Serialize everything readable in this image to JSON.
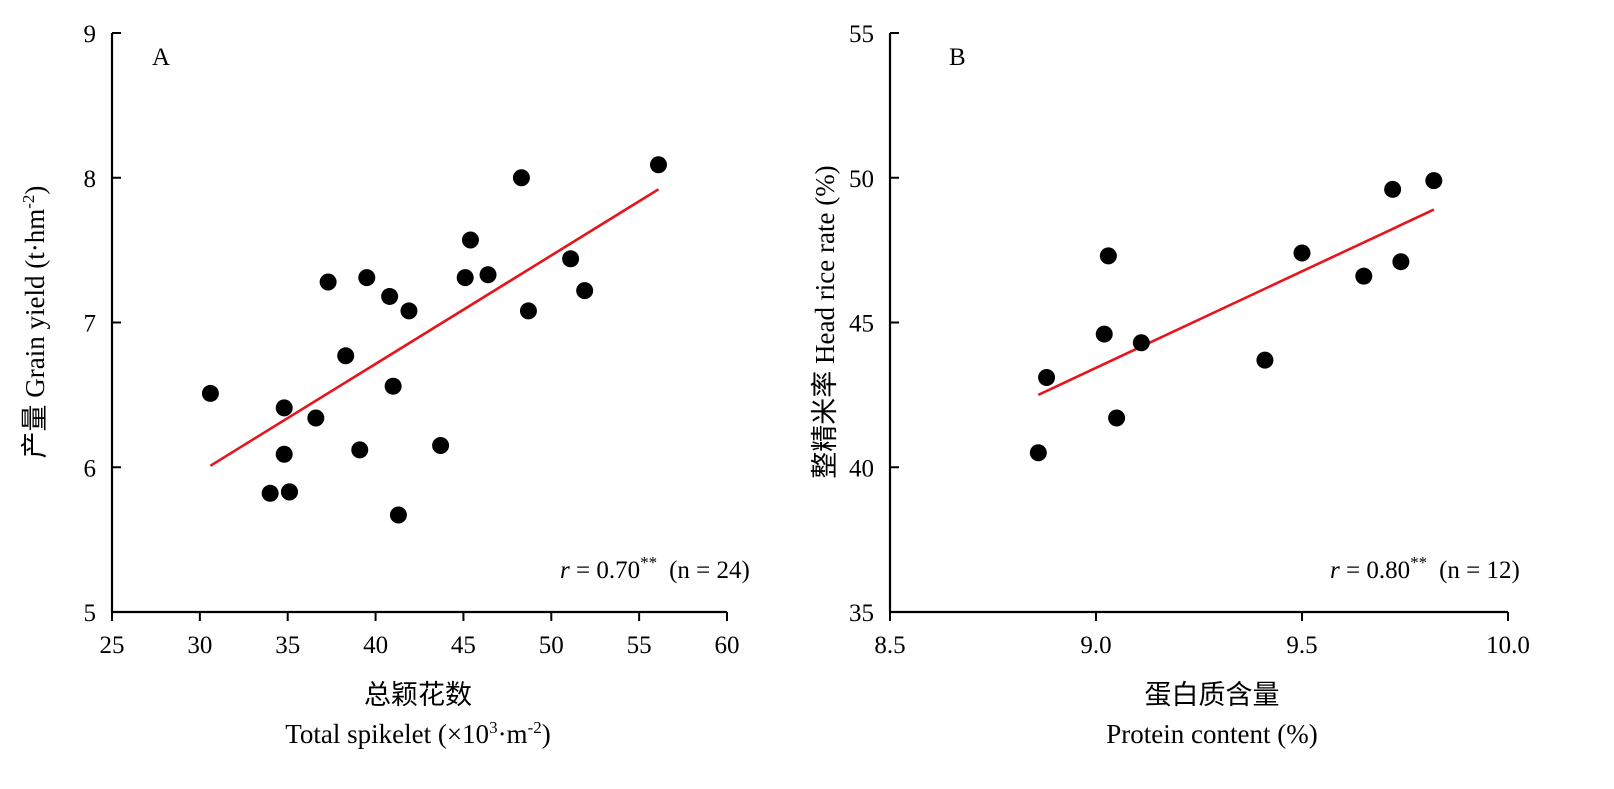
{
  "chart_data": [
    {
      "type": "scatter",
      "panel_label": "A",
      "ylabel_cn": "产量",
      "ylabel_en": "Grain yield (t·hm",
      "ylabel_sup": "-2",
      "ylabel_end": ")",
      "xlabel_cn": "总颖花数",
      "xlabel_en": "Total spikelet (×10",
      "xlabel_sup1": "3",
      "xlabel_mid": "·m",
      "xlabel_sup2": "-2",
      "xlabel_end": ")",
      "xlim": [
        25,
        60
      ],
      "ylim": [
        5,
        9
      ],
      "xticks": [
        "25",
        "30",
        "35",
        "40",
        "45",
        "50",
        "55",
        "60"
      ],
      "yticks": [
        "5",
        "6",
        "7",
        "8",
        "9"
      ],
      "points": [
        {
          "x": 30.6,
          "y": 6.51
        },
        {
          "x": 34.0,
          "y": 5.82
        },
        {
          "x": 34.8,
          "y": 6.41
        },
        {
          "x": 34.8,
          "y": 6.09
        },
        {
          "x": 35.1,
          "y": 5.83
        },
        {
          "x": 36.6,
          "y": 6.34
        },
        {
          "x": 37.3,
          "y": 7.28
        },
        {
          "x": 38.3,
          "y": 6.77
        },
        {
          "x": 39.1,
          "y": 6.12
        },
        {
          "x": 39.5,
          "y": 7.31
        },
        {
          "x": 40.8,
          "y": 7.18
        },
        {
          "x": 41.0,
          "y": 6.56
        },
        {
          "x": 41.3,
          "y": 5.67
        },
        {
          "x": 41.9,
          "y": 7.08
        },
        {
          "x": 43.7,
          "y": 6.15
        },
        {
          "x": 45.1,
          "y": 7.31
        },
        {
          "x": 45.4,
          "y": 7.57
        },
        {
          "x": 46.4,
          "y": 7.33
        },
        {
          "x": 48.3,
          "y": 8.0
        },
        {
          "x": 48.7,
          "y": 7.08
        },
        {
          "x": 51.1,
          "y": 7.44
        },
        {
          "x": 51.9,
          "y": 7.22
        },
        {
          "x": 56.1,
          "y": 8.09
        },
        {
          "x": 35.1,
          "y": 5.83
        }
      ],
      "fit_line": {
        "x": [
          30.6,
          56.1
        ],
        "y": [
          6.01,
          7.92
        ]
      },
      "r_label": "r",
      "r_value": " = 0.70",
      "r_sig": "**",
      "n_label": "(n = 24)"
    },
    {
      "type": "scatter",
      "panel_label": "B",
      "ylabel_cn": "整精米率",
      "ylabel_en": "Head rice rate (%)",
      "xlabel_cn": "蛋白质含量",
      "xlabel_en": "Protein content (%)",
      "xlim": [
        8.5,
        10.0
      ],
      "ylim": [
        35,
        55
      ],
      "xticks": [
        "8.5",
        "9.0",
        "9.5",
        "10.0"
      ],
      "yticks": [
        "35",
        "40",
        "45",
        "50",
        "55"
      ],
      "points": [
        {
          "x": 8.86,
          "y": 40.5
        },
        {
          "x": 8.88,
          "y": 43.1
        },
        {
          "x": 9.02,
          "y": 44.6
        },
        {
          "x": 9.03,
          "y": 47.3
        },
        {
          "x": 9.05,
          "y": 41.7
        },
        {
          "x": 9.11,
          "y": 44.3
        },
        {
          "x": 9.41,
          "y": 43.7
        },
        {
          "x": 9.5,
          "y": 47.4
        },
        {
          "x": 9.65,
          "y": 46.6
        },
        {
          "x": 9.72,
          "y": 49.6
        },
        {
          "x": 9.74,
          "y": 47.1
        },
        {
          "x": 9.82,
          "y": 49.9
        }
      ],
      "fit_line": {
        "x": [
          8.86,
          9.82
        ],
        "y": [
          42.5,
          48.9
        ]
      },
      "r_label": "r",
      "r_value": " = 0.80",
      "r_sig": "**",
      "n_label": "(n = 12)"
    }
  ]
}
